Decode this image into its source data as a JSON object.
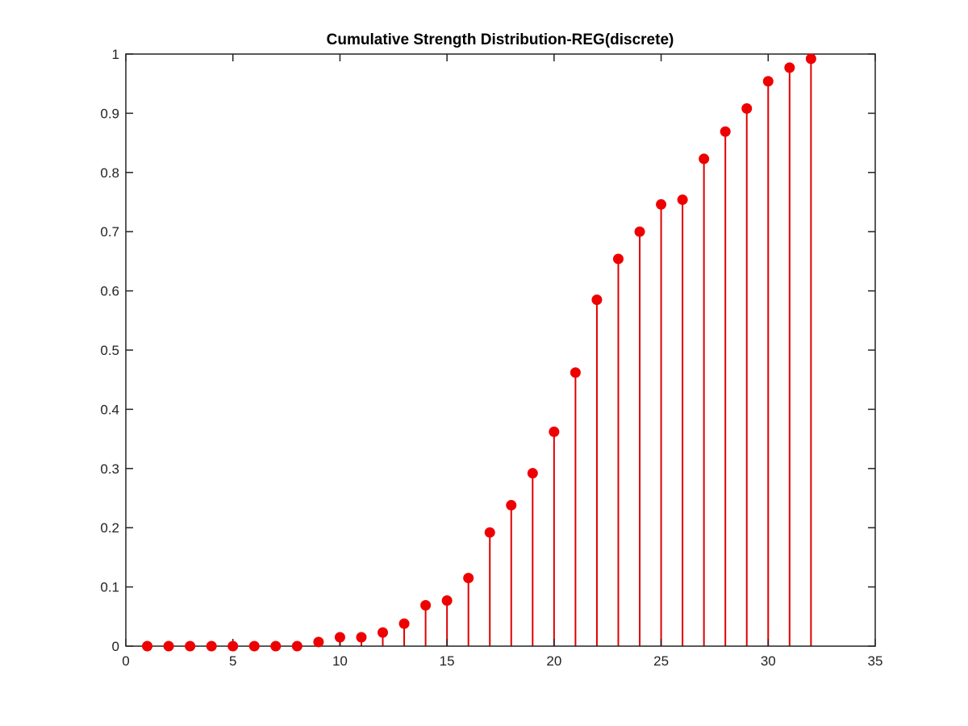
{
  "colors": {
    "stem": "#e00000",
    "marker": "#ee0000",
    "axis": "#222222",
    "background": "#ffffff"
  },
  "chart_data": {
    "type": "stem",
    "title": "Cumulative Strength Distribution-REG(discrete)",
    "xlabel": "",
    "ylabel": "",
    "xlim": [
      0,
      35
    ],
    "ylim": [
      0,
      1
    ],
    "xticks": [
      0,
      5,
      10,
      15,
      20,
      25,
      30,
      35
    ],
    "xtick_labels": [
      "0",
      "5",
      "10",
      "15",
      "20",
      "25",
      "30",
      "35"
    ],
    "yticks": [
      0,
      0.1,
      0.2,
      0.3,
      0.4,
      0.5,
      0.6,
      0.7,
      0.8,
      0.9,
      1
    ],
    "ytick_labels": [
      "0",
      "0.1",
      "0.2",
      "0.3",
      "0.4",
      "0.5",
      "0.6",
      "0.7",
      "0.8",
      "0.9",
      "1"
    ],
    "grid": false,
    "legend": null,
    "x": [
      1,
      2,
      3,
      4,
      5,
      6,
      7,
      8,
      9,
      10,
      11,
      12,
      13,
      14,
      15,
      16,
      17,
      18,
      19,
      20,
      21,
      22,
      23,
      24,
      25,
      26,
      27,
      28,
      29,
      30,
      31,
      32
    ],
    "y": [
      0,
      0,
      0,
      0,
      0,
      0,
      0,
      0,
      0.007,
      0.015,
      0.015,
      0.023,
      0.038,
      0.069,
      0.077,
      0.115,
      0.192,
      0.238,
      0.292,
      0.362,
      0.462,
      0.585,
      0.654,
      0.7,
      0.746,
      0.754,
      0.823,
      0.869,
      0.908,
      0.954,
      0.977,
      0.992
    ]
  }
}
